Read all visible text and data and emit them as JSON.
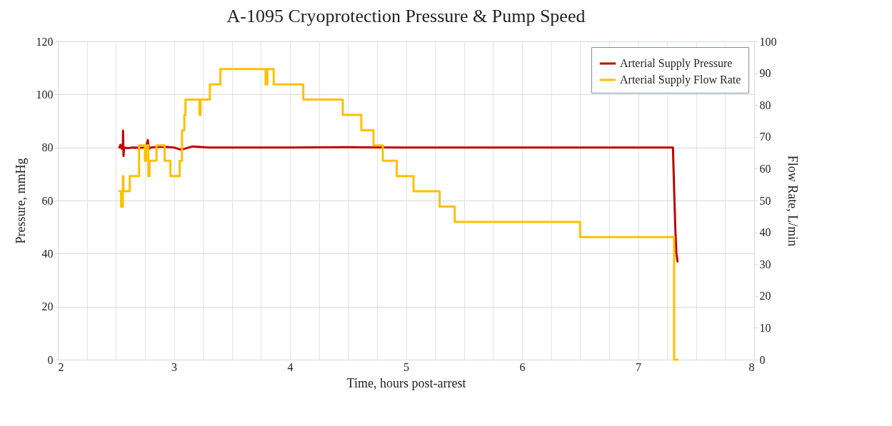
{
  "chart_data": {
    "type": "line",
    "title": "A-1095 Cryoprotection Pressure & Pump Speed",
    "xlabel": "Time, hours post-arrest",
    "ylabel": "Pressure, mmHg",
    "y2label": "Flow Rate, L/min",
    "xlim": [
      2,
      8
    ],
    "xticks": [
      2,
      {
        "value": 2.25,
        "label": null
      },
      {
        "value": 2.5,
        "label": null
      },
      {
        "value": 2.75,
        "label": null
      },
      3,
      {
        "value": 3.25,
        "label": null
      },
      {
        "value": 3.5,
        "label": null
      },
      {
        "value": 3.75,
        "label": null
      },
      4,
      {
        "value": 4.25,
        "label": null
      },
      {
        "value": 4.5,
        "label": null
      },
      {
        "value": 4.75,
        "label": null
      },
      5,
      {
        "value": 5.25,
        "label": null
      },
      {
        "value": 5.5,
        "label": null
      },
      {
        "value": 5.75,
        "label": null
      },
      6,
      {
        "value": 6.25,
        "label": null
      },
      {
        "value": 6.5,
        "label": null
      },
      {
        "value": 6.75,
        "label": null
      },
      7,
      {
        "value": 7.25,
        "label": null
      },
      {
        "value": 7.5,
        "label": null
      },
      {
        "value": 7.75,
        "label": null
      },
      8
    ],
    "ylim": [
      0,
      120
    ],
    "yticks": [
      0,
      20,
      40,
      60,
      80,
      100,
      120
    ],
    "y2lim": [
      0,
      100
    ],
    "y2ticks": [
      0,
      10,
      20,
      30,
      40,
      50,
      60,
      70,
      80,
      90,
      100
    ],
    "grid": true,
    "legend": "top right",
    "series": [
      {
        "name": "Arterial Supply Pressure",
        "color": "#c00000",
        "x": [
          2.53,
          2.54,
          2.55,
          2.56,
          2.562,
          2.566,
          2.57,
          2.6,
          2.65,
          2.7,
          2.76,
          2.775,
          2.785,
          2.8,
          2.9,
          3.0,
          3.057,
          3.1,
          3.16,
          3.3,
          3.5,
          4,
          4.5,
          5,
          6,
          7,
          7.3,
          7.32,
          7.33,
          7.34
        ],
        "values": [
          80,
          81,
          79.5,
          80,
          86.4,
          76.8,
          80,
          79.8,
          80,
          79.9,
          80,
          82.8,
          79.5,
          80,
          80.3,
          80,
          79.2,
          79.6,
          80.4,
          80,
          80,
          80,
          80.1,
          80,
          80,
          80,
          80,
          50,
          40,
          37
        ]
      },
      {
        "name": "Arterial Supply Flow Rate",
        "color": "#ffc000",
        "type": "step",
        "axis": "y2",
        "x": [
          2.53,
          2.545,
          2.56,
          2.565,
          2.62,
          2.7,
          2.75,
          2.76,
          2.78,
          2.79,
          2.85,
          2.92,
          2.97,
          3.05,
          3.07,
          3.09,
          3.1,
          3.22,
          3.23,
          3.31,
          3.4,
          3.79,
          3.805,
          3.86,
          4.115,
          4.455,
          4.615,
          4.72,
          4.8,
          4.92,
          5.065,
          5.29,
          5.42,
          6.5,
          7.31,
          7.34
        ],
        "values": [
          52.9,
          48.1,
          57.7,
          52.9,
          57.7,
          67.3,
          62.5,
          67.3,
          57.7,
          62.5,
          67.3,
          62.5,
          57.7,
          62.5,
          72.1,
          76.9,
          81.7,
          76.9,
          81.7,
          86.5,
          91.3,
          86.5,
          91.3,
          86.5,
          81.7,
          76.9,
          72.1,
          67.3,
          62.5,
          57.7,
          52.9,
          48.1,
          43.3,
          38.5,
          0,
          0
        ]
      }
    ]
  }
}
